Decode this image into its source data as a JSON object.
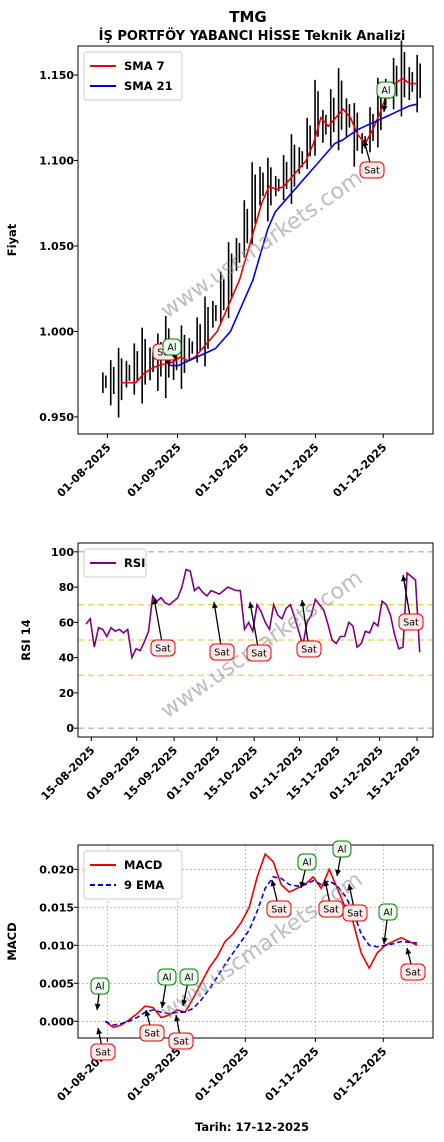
{
  "title": "TMG",
  "subtitle": "İŞ PORTFÖY YABANCI HİSSE Teknik Analizi",
  "footer": "Tarih: 17-12-2025",
  "watermark": "www.uscmarkets.com",
  "colors": {
    "sma7": "#ee0000",
    "sma21": "#0000dd",
    "rsi": "#800080",
    "macd": "#ee0000",
    "ema": "#0000ee",
    "buy": "#008000",
    "sell": "#ee0000"
  },
  "chart_data": [
    {
      "type": "line",
      "title": "TMG",
      "ylabel": "Fiyat",
      "ylim": [
        0.94,
        1.167
      ],
      "yticks": [
        "0.950",
        "1.000",
        "1.050",
        "1.100",
        "1.150"
      ],
      "xticks": [
        "01-08-2025",
        "01-09-2025",
        "01-10-2025",
        "01-11-2025",
        "01-12-2025"
      ],
      "legend": "top-left",
      "series": [
        {
          "name": "SMA 7",
          "values": [
            0.97,
            0.97,
            0.97,
            0.975,
            0.978,
            0.98,
            0.981,
            0.982,
            0.985,
            0.983,
            0.985,
            0.99,
            0.995,
            1.0,
            1.01,
            1.02,
            1.03,
            1.045,
            1.06,
            1.075,
            1.085,
            1.083,
            1.085,
            1.09,
            1.095,
            1.1,
            1.11,
            1.125,
            1.12,
            1.125,
            1.13,
            1.125,
            1.115,
            1.11,
            1.118,
            1.128,
            1.14,
            1.145,
            1.148,
            1.145,
            1.145
          ]
        },
        {
          "name": "SMA 21",
          "values": [
            0.98,
            0.98,
            0.982,
            0.984,
            0.986,
            0.988,
            0.99,
            0.995,
            1.0,
            1.01,
            1.02,
            1.03,
            1.045,
            1.06,
            1.07,
            1.075,
            1.08,
            1.085,
            1.09,
            1.095,
            1.1,
            1.105,
            1.11,
            1.112,
            1.115,
            1.118,
            1.12,
            1.122,
            1.124,
            1.126,
            1.128,
            1.13,
            1.132,
            1.133
          ]
        }
      ],
      "annotations": [
        {
          "label": "Sat",
          "x": "2025-08-29",
          "y": 0.985
        },
        {
          "label": "Al",
          "x": "2025-09-01",
          "y": 0.985
        },
        {
          "label": "Al",
          "x": "2025-11-30",
          "y": 1.133
        },
        {
          "label": "Sat",
          "x": "2025-11-24",
          "y": 1.105
        }
      ]
    },
    {
      "type": "line",
      "ylabel": "RSI 14",
      "ylim": [
        -5,
        105
      ],
      "yticks": [
        "0",
        "20",
        "40",
        "60",
        "80",
        "100"
      ],
      "xticks": [
        "15-08-2025",
        "01-09-2025",
        "15-09-2025",
        "01-10-2025",
        "15-10-2025",
        "01-11-2025",
        "15-11-2025",
        "01-12-2025",
        "15-12-2025"
      ],
      "legend": "top-left",
      "hlines": [
        0,
        30,
        50,
        70,
        100
      ],
      "series": [
        {
          "name": "RSI",
          "values": [
            59,
            62,
            46,
            57,
            56,
            52,
            57,
            55,
            56,
            54,
            56,
            40,
            45,
            44,
            49,
            55,
            75,
            72,
            74,
            71,
            70,
            72,
            74,
            80,
            90,
            89,
            78,
            80,
            77,
            75,
            78,
            77,
            76,
            78,
            80,
            79,
            78,
            78,
            56,
            60,
            55,
            70,
            66,
            60,
            56,
            70,
            64,
            62,
            68,
            70,
            63,
            55,
            47,
            60,
            64,
            73,
            70,
            67,
            59,
            50,
            48,
            52,
            52,
            60,
            58,
            46,
            48,
            55,
            54,
            60,
            58,
            72,
            70,
            64,
            53,
            45,
            46,
            88,
            86,
            84,
            43
          ]
        }
      ],
      "annotations": [
        {
          "label": "Sat",
          "x": "2025-09-15"
        },
        {
          "label": "Sat",
          "x": "2025-10-02"
        },
        {
          "label": "Sat",
          "x": "2025-10-09"
        },
        {
          "label": "Sat",
          "x": "2025-10-25"
        },
        {
          "label": "Sat",
          "x": "2025-12-13"
        }
      ]
    },
    {
      "type": "line",
      "ylabel": "MACD",
      "ylim": [
        -0.0022,
        0.0232
      ],
      "yticks": [
        "0.000",
        "0.005",
        "0.010",
        "0.015",
        "0.020"
      ],
      "xticks": [
        "01-08-2025",
        "01-09-2025",
        "01-10-2025",
        "01-11-2025",
        "01-12-2025"
      ],
      "legend": "top-left",
      "series": [
        {
          "name": "MACD",
          "values": [
            0.0,
            -0.0008,
            -0.0005,
            0.0002,
            0.001,
            0.002,
            0.0018,
            0.0005,
            0.0008,
            0.0015,
            0.0012,
            0.003,
            0.005,
            0.007,
            0.0085,
            0.0105,
            0.0115,
            0.013,
            0.015,
            0.019,
            0.022,
            0.021,
            0.018,
            0.017,
            0.0175,
            0.018,
            0.019,
            0.0175,
            0.02,
            0.0175,
            0.015,
            0.013,
            0.009,
            0.007,
            0.009,
            0.01,
            0.0105,
            0.011,
            0.0105,
            0.01
          ]
        },
        {
          "name": "9 EMA",
          "values": [
            0.0,
            -0.0005,
            -0.0003,
            0.0,
            0.0005,
            0.0012,
            0.0015,
            0.0012,
            0.001,
            0.0012,
            0.0012,
            0.0017,
            0.0028,
            0.0042,
            0.0058,
            0.0075,
            0.009,
            0.0105,
            0.012,
            0.0145,
            0.0175,
            0.019,
            0.0188,
            0.018,
            0.0178,
            0.018,
            0.0185,
            0.018,
            0.0185,
            0.0178,
            0.0165,
            0.0145,
            0.0115,
            0.01,
            0.0098,
            0.01,
            0.0102,
            0.0105,
            0.0104,
            0.0103
          ]
        }
      ],
      "annotations": [
        {
          "label": "Al",
          "x": "2025-07-31"
        },
        {
          "label": "Sat",
          "x": "2025-07-31"
        },
        {
          "label": "Sat",
          "x": "2025-08-22"
        },
        {
          "label": "Al",
          "x": "2025-08-28"
        },
        {
          "label": "Sat",
          "x": "2025-08-30"
        },
        {
          "label": "Al",
          "x": "2025-09-05"
        },
        {
          "label": "Sat",
          "x": "2025-10-27"
        },
        {
          "label": "Al",
          "x": "2025-10-28"
        },
        {
          "label": "Sat",
          "x": "2025-11-05"
        },
        {
          "label": "Al",
          "x": "2025-11-09"
        },
        {
          "label": "Sat",
          "x": "2025-11-12"
        },
        {
          "label": "Al",
          "x": "2025-11-22"
        },
        {
          "label": "Sat",
          "x": "2025-12-12"
        }
      ]
    }
  ]
}
